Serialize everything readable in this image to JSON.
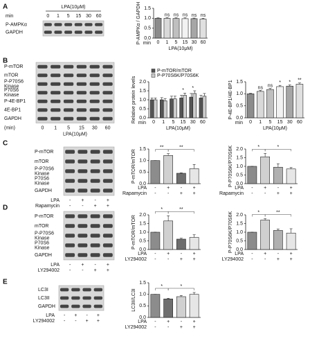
{
  "panels": [
    {
      "letter": "A",
      "header": "LPA(10μM)",
      "time_label": "min",
      "times": [
        "0",
        "1",
        "5",
        "15",
        "30",
        "60"
      ],
      "rows": [
        [
          "P-AMPKα"
        ],
        [
          "GAPDH"
        ]
      ]
    },
    {
      "letter": "B",
      "rows": [
        [
          "P-mTOR"
        ],
        [
          "mTOR"
        ],
        [
          "P-P70S6",
          "Kinase"
        ],
        [
          "P70S6",
          "Kinase"
        ],
        [
          "P-4E-BP1"
        ],
        [
          "4E-BP1"
        ],
        [
          "GAPDH"
        ]
      ],
      "time_label": "(min)",
      "times": [
        "0",
        "1",
        "5",
        "15",
        "30",
        "60"
      ],
      "footer": "LPA(10μM)"
    },
    {
      "letter": "C",
      "rows": [
        [
          "P-mTOR"
        ],
        [
          "mTOR"
        ],
        [
          "P-P70S6",
          "Kinase"
        ],
        [
          "P70S6",
          "Kinase"
        ],
        [
          "GAPDH"
        ]
      ],
      "conditions": [
        {
          "name": "LPA",
          "signs": [
            "-",
            "+",
            "-",
            "+"
          ]
        },
        {
          "name": "Rapamycin",
          "signs": [
            "-",
            "-",
            "+",
            "+"
          ]
        }
      ]
    },
    {
      "letter": "D",
      "rows": [
        [
          "P-mTOR"
        ],
        [
          "mTOR"
        ],
        [
          "P-P70S6",
          "Kinase"
        ],
        [
          "P70S6",
          "Kinase"
        ],
        [
          "GAPDH"
        ]
      ],
      "conditions": [
        {
          "name": "LPA",
          "signs": [
            "-",
            "+",
            "-",
            "+"
          ]
        },
        {
          "name": "LY294002",
          "signs": [
            "-",
            "-",
            "+",
            "+"
          ]
        }
      ]
    },
    {
      "letter": "E",
      "rows": [
        [
          "LC3I"
        ],
        [
          "LC3II"
        ],
        [
          "GAPDH"
        ]
      ],
      "conditions": [
        {
          "name": "LPA",
          "signs": [
            "-",
            "+",
            "-",
            "+"
          ]
        },
        {
          "name": "LY294002",
          "signs": [
            "-",
            "-",
            "+",
            "+"
          ]
        }
      ]
    }
  ],
  "chart_data": [
    {
      "type": "bar",
      "y_label": "P-AMPKα / GAPDH",
      "x_label": "LPA(10μM)",
      "x_unit": "min",
      "categories": [
        "0",
        "1",
        "5",
        "15",
        "30",
        "60"
      ],
      "series": [
        {
          "colors": [
            "#8c8c8c",
            "#d9d9d9",
            "#bfbfbf",
            "#f2f2f2",
            "#a6a6a6",
            "#e0e0e0"
          ],
          "values": [
            1.0,
            1.0,
            0.99,
            0.98,
            0.98,
            0.96
          ],
          "errors": [
            0.02,
            0.03,
            0.03,
            0.04,
            0.03,
            0.04
          ]
        }
      ],
      "annotations": [
        null,
        "ns",
        "ns",
        "ns",
        "ns",
        "ns"
      ],
      "ylim": [
        0,
        1.5
      ],
      "yticks": [
        {
          "value": 0,
          "label": "0.0"
        },
        {
          "value": 0.5,
          "label": "0.5"
        },
        {
          "value": 1,
          "label": "1.0"
        },
        {
          "value": 1.5,
          "label": "1.5"
        }
      ]
    },
    {
      "type": "bar",
      "y_label": "Relative protein levels",
      "x_label": "LPA(10μM)",
      "x_unit": "min",
      "categories": [
        "0",
        "1",
        "5",
        "15",
        "30",
        "60"
      ],
      "series": [
        {
          "name": "P-mTOR/mTOR",
          "color": "#555555",
          "values": [
            1.0,
            1.0,
            1.05,
            1.1,
            1.15,
            1.1
          ],
          "errors": [
            0.1,
            0.12,
            0.15,
            0.15,
            0.2,
            0.15
          ]
        },
        {
          "name": "P-P70S6K/P70S6K",
          "color": "#cccccc",
          "values": [
            1.0,
            0.95,
            1.05,
            1.25,
            1.35,
            1.2
          ],
          "errors": [
            0.1,
            0.12,
            0.15,
            0.12,
            0.15,
            0.15
          ]
        }
      ],
      "annotations": [
        null,
        null,
        null,
        "*",
        "*",
        null
      ],
      "legend": "top-left",
      "ylim": [
        0,
        2
      ],
      "yticks": [
        {
          "value": 0,
          "label": "0.0"
        },
        {
          "value": 0.5,
          "label": "0.5"
        },
        {
          "value": 1,
          "label": "1.0"
        },
        {
          "value": 1.5,
          "label": "1.5"
        },
        {
          "value": 2,
          "label": "2.0"
        }
      ]
    },
    {
      "type": "bar",
      "y_label": "P-4E-BP1/4E-BP1",
      "x_label": "LPA(10μM)",
      "x_unit": "min",
      "categories": [
        "0",
        "1",
        "5",
        "15",
        "30",
        "60"
      ],
      "series": [
        {
          "colors": [
            "#8c8c8c",
            "#d9d9d9",
            "#bfbfbf",
            "#f2f2f2",
            "#a6a6a6",
            "#e0e0e0"
          ],
          "values": [
            1.0,
            1.1,
            1.18,
            1.3,
            1.32,
            1.4
          ],
          "errors": [
            0.02,
            0.04,
            0.04,
            0.05,
            0.05,
            0.05
          ]
        }
      ],
      "annotations": [
        null,
        "ns",
        "ns",
        "*",
        "*",
        "**"
      ],
      "ylim": [
        0,
        1.5
      ],
      "yticks": [
        {
          "value": 0,
          "label": "0.0"
        },
        {
          "value": 0.5,
          "label": "0.5"
        },
        {
          "value": 1,
          "label": "1.0"
        },
        {
          "value": 1.5,
          "label": "1.5"
        }
      ]
    },
    {
      "type": "bar",
      "y_label": "P-mTOR/mTOR",
      "categories": [
        null,
        null,
        null,
        null
      ],
      "series": [
        {
          "colors": [
            "#8c8c8c",
            "#d0d0d0",
            "#6e6e6e",
            "#e6e6e6"
          ],
          "values": [
            1.0,
            1.22,
            0.45,
            0.65
          ],
          "errors": [
            0.0,
            0.08,
            0.02,
            0.18
          ]
        }
      ],
      "brackets": [
        {
          "from": 0,
          "to": 1,
          "label": "**"
        },
        {
          "from": 1,
          "to": 3,
          "label": "**"
        }
      ],
      "conditions": [
        {
          "name": "LPA",
          "signs": [
            "-",
            "+",
            "-",
            "+"
          ]
        },
        {
          "name": "Rapamycin",
          "signs": [
            "-",
            "-",
            "+",
            "+"
          ]
        }
      ],
      "ylim": [
        0,
        1.5
      ],
      "yticks": [
        {
          "value": 0,
          "label": "0.0"
        },
        {
          "value": 0.5,
          "label": "0.5"
        },
        {
          "value": 1,
          "label": "1.0"
        },
        {
          "value": 1.5,
          "label": "1.5"
        }
      ]
    },
    {
      "type": "bar",
      "y_label": "P-P70S6K/P70S6K",
      "categories": [
        null,
        null,
        null,
        null
      ],
      "series": [
        {
          "colors": [
            "#8c8c8c",
            "#d0d0d0",
            "#b0b0b0",
            "#e6e6e6"
          ],
          "values": [
            1.0,
            1.55,
            0.95,
            0.85
          ],
          "errors": [
            0.0,
            0.2,
            0.2,
            0.08
          ]
        }
      ],
      "brackets": [
        {
          "from": 0,
          "to": 1,
          "label": "*"
        },
        {
          "from": 1,
          "to": 3,
          "label": "*"
        }
      ],
      "conditions": [
        {
          "name": "LPA",
          "signs": [
            "-",
            "+",
            "-",
            "+"
          ]
        },
        {
          "name": "Rapamycin",
          "signs": [
            "-",
            "-",
            "+",
            "+"
          ]
        }
      ],
      "ylim": [
        0,
        2
      ],
      "yticks": [
        {
          "value": 0,
          "label": "0.0"
        },
        {
          "value": 0.5,
          "label": "0.5"
        },
        {
          "value": 1,
          "label": "1.0"
        },
        {
          "value": 1.5,
          "label": "1.5"
        },
        {
          "value": 2,
          "label": "2.0"
        }
      ]
    },
    {
      "type": "bar",
      "y_label": "P-mTOR/mTOR",
      "categories": [
        null,
        null,
        null,
        null
      ],
      "series": [
        {
          "colors": [
            "#8c8c8c",
            "#d0d0d0",
            "#6e6e6e",
            "#e6e6e6"
          ],
          "values": [
            1.0,
            1.65,
            0.6,
            0.7
          ],
          "errors": [
            0.0,
            0.3,
            0.05,
            0.15
          ]
        }
      ],
      "brackets": [
        {
          "from": 0,
          "to": 1,
          "label": "*"
        },
        {
          "from": 1,
          "to": 3,
          "label": "**"
        }
      ],
      "conditions": [
        {
          "name": "LPA",
          "signs": [
            "-",
            "+",
            "-",
            "+"
          ]
        },
        {
          "name": "LY294002",
          "signs": [
            "-",
            "-",
            "+",
            "+"
          ]
        }
      ],
      "ylim": [
        0,
        2
      ],
      "yticks": [
        {
          "value": 0,
          "label": "0.0"
        },
        {
          "value": 0.5,
          "label": "0.5"
        },
        {
          "value": 1,
          "label": "1.0"
        },
        {
          "value": 1.5,
          "label": "1.5"
        },
        {
          "value": 2,
          "label": "2.0"
        }
      ]
    },
    {
      "type": "bar",
      "y_label": "P-P70S6K/P70S6K",
      "categories": [
        null,
        null,
        null,
        null
      ],
      "series": [
        {
          "colors": [
            "#8c8c8c",
            "#d0d0d0",
            "#b0b0b0",
            "#e6e6e6"
          ],
          "values": [
            1.0,
            1.7,
            1.1,
            0.95
          ],
          "errors": [
            0.0,
            0.08,
            0.08,
            0.25
          ]
        }
      ],
      "brackets": [
        {
          "from": 0,
          "to": 1,
          "label": "*"
        },
        {
          "from": 1,
          "to": 3,
          "label": "**"
        }
      ],
      "conditions": [
        {
          "name": "LPA",
          "signs": [
            "-",
            "+",
            "-",
            "+"
          ]
        },
        {
          "name": "LY294002",
          "signs": [
            "-",
            "-",
            "+",
            "+"
          ]
        }
      ],
      "ylim": [
        0,
        2
      ],
      "yticks": [
        {
          "value": 0,
          "label": "0.0"
        },
        {
          "value": 0.5,
          "label": "0.5"
        },
        {
          "value": 1,
          "label": "1.0"
        },
        {
          "value": 1.5,
          "label": "1.5"
        },
        {
          "value": 2,
          "label": "2.0"
        }
      ]
    },
    {
      "type": "bar",
      "y_label": "LC3II/LC3I",
      "categories": [
        null,
        null,
        null,
        null
      ],
      "series": [
        {
          "colors": [
            "#8c8c8c",
            "#6e6e6e",
            "#d0d0d0",
            "#e6e6e6"
          ],
          "values": [
            1.0,
            0.8,
            0.9,
            1.0
          ],
          "errors": [
            0.0,
            0.03,
            0.05,
            0.08
          ]
        }
      ],
      "brackets": [
        {
          "from": 0,
          "to": 1,
          "label": "*"
        },
        {
          "from": 1,
          "to": 3,
          "label": "*"
        }
      ],
      "conditions": [
        {
          "name": "LPA",
          "signs": [
            "-",
            "+",
            "-",
            "+"
          ]
        },
        {
          "name": "LY294002",
          "signs": [
            "-",
            "-",
            "+",
            "+"
          ]
        }
      ],
      "ylim": [
        0,
        1.5
      ],
      "yticks": [
        {
          "value": 0,
          "label": "0.0"
        },
        {
          "value": 0.5,
          "label": "0.5"
        },
        {
          "value": 1,
          "label": "1.0"
        },
        {
          "value": 1.5,
          "label": "1.5"
        }
      ]
    }
  ]
}
